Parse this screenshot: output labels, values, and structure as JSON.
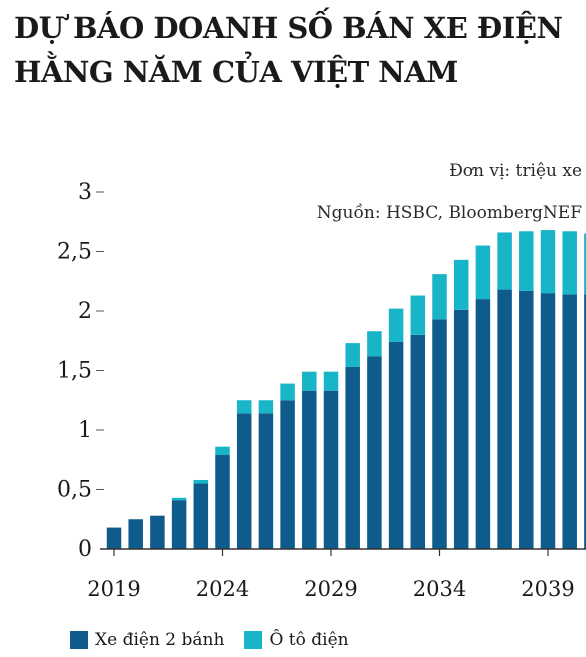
{
  "title_lines": [
    "DỰ BÁO DOANH SỐ BÁN XE ĐIỆN",
    "HẰNG NĂM CỦA VIỆT NAM"
  ],
  "unit": "Đơn vị: triệu xe",
  "source": "Nguồn: HSBC, BloombergNEF",
  "colors": {
    "two_wheel": "#0e5b8c",
    "car": "#18b4c8",
    "axis": "#333333",
    "tick": "#555555"
  },
  "chart_data": {
    "type": "bar",
    "stacked": true,
    "x": [
      2019,
      2020,
      2021,
      2022,
      2023,
      2024,
      2025,
      2026,
      2027,
      2028,
      2029,
      2030,
      2031,
      2032,
      2033,
      2034,
      2035,
      2036,
      2037,
      2038,
      2039,
      2040,
      2041
    ],
    "x_tick_labels": [
      "2019",
      "2024",
      "2029",
      "2034",
      "2039"
    ],
    "y_tick_labels": [
      "0",
      "0,5",
      "1",
      "1,5",
      "2",
      "2,5",
      "3"
    ],
    "ylim": [
      0,
      3
    ],
    "series": [
      {
        "name": "Xe điện 2 bánh",
        "values": [
          0.18,
          0.25,
          0.28,
          0.41,
          0.55,
          0.79,
          1.14,
          1.14,
          1.25,
          1.33,
          1.33,
          1.53,
          1.62,
          1.74,
          1.8,
          1.93,
          2.01,
          2.1,
          2.18,
          2.17,
          2.15,
          2.14,
          2.14
        ]
      },
      {
        "name": "Ô tô điện",
        "values": [
          0.0,
          0.0,
          0.0,
          0.02,
          0.03,
          0.07,
          0.11,
          0.11,
          0.14,
          0.16,
          0.16,
          0.2,
          0.21,
          0.28,
          0.33,
          0.38,
          0.42,
          0.45,
          0.48,
          0.5,
          0.53,
          0.53,
          0.51
        ]
      }
    ],
    "legend_position": "bottom-left",
    "grid": false
  }
}
